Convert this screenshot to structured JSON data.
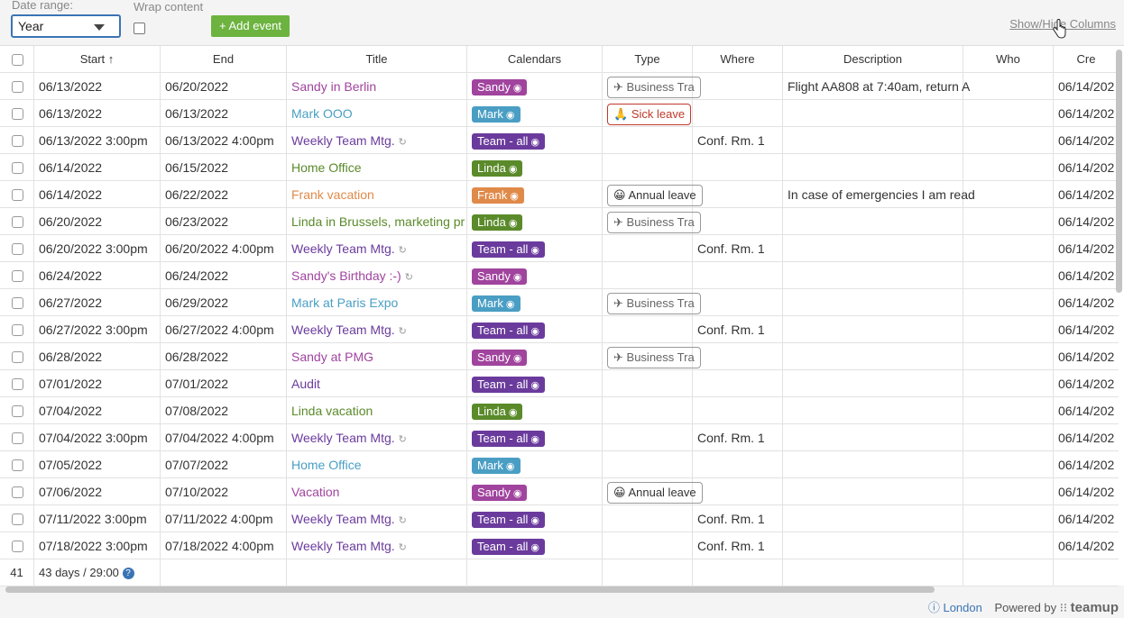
{
  "toolbar": {
    "date_range_label": "Date range:",
    "date_range_value": "Year",
    "wrap_label": "Wrap content",
    "add_event_label": "+ Add event",
    "show_hide_label": "Show/Hide Columns"
  },
  "columns": [
    "Start ↑",
    "End",
    "Title",
    "Calendars",
    "Type",
    "Where",
    "Description",
    "Who",
    "Cre"
  ],
  "colors": {
    "sandy": "#a0449e",
    "mark": "#4a9ec4",
    "team": "#6a3b9c",
    "linda": "#5a8a2a",
    "frank": "#e08a4a"
  },
  "rows": [
    {
      "start": "06/13/2022",
      "end": "06/20/2022",
      "title": "Sandy in Berlin",
      "cal": "Sandy",
      "color": "sandy",
      "rec": false,
      "type": "Business Tra",
      "type_kind": "travel",
      "where": "",
      "desc": "Flight AA808 at 7:40am, return A",
      "created": "06/14/202"
    },
    {
      "start": "06/13/2022",
      "end": "06/13/2022",
      "title": "Mark OOO",
      "cal": "Mark",
      "color": "mark",
      "rec": false,
      "type": "Sick leave",
      "type_kind": "sick",
      "where": "",
      "desc": "",
      "created": "06/14/202"
    },
    {
      "start": "06/13/2022 3:00pm",
      "end": "06/13/2022 4:00pm",
      "title": "Weekly Team Mtg.",
      "cal": "Team - all",
      "color": "team",
      "rec": true,
      "type": "",
      "type_kind": "",
      "where": "Conf. Rm. 1",
      "desc": "",
      "created": "06/14/202"
    },
    {
      "start": "06/14/2022",
      "end": "06/15/2022",
      "title": "Home Office",
      "cal": "Linda",
      "color": "linda",
      "rec": false,
      "type": "",
      "type_kind": "",
      "where": "",
      "desc": "",
      "created": "06/14/202"
    },
    {
      "start": "06/14/2022",
      "end": "06/22/2022",
      "title": "Frank vacation",
      "cal": "Frank",
      "color": "frank",
      "rec": false,
      "type": "Annual leave",
      "type_kind": "annual",
      "where": "",
      "desc": "In case of emergencies I am read",
      "created": "06/14/202"
    },
    {
      "start": "06/20/2022",
      "end": "06/23/2022",
      "title": "Linda in Brussels, marketing pr",
      "cal": "Linda",
      "color": "linda",
      "rec": false,
      "type": "Business Tra",
      "type_kind": "travel",
      "where": "",
      "desc": "",
      "created": "06/14/202"
    },
    {
      "start": "06/20/2022 3:00pm",
      "end": "06/20/2022 4:00pm",
      "title": "Weekly Team Mtg.",
      "cal": "Team - all",
      "color": "team",
      "rec": true,
      "type": "",
      "type_kind": "",
      "where": "Conf. Rm. 1",
      "desc": "",
      "created": "06/14/202"
    },
    {
      "start": "06/24/2022",
      "end": "06/24/2022",
      "title": "Sandy's Birthday :-)",
      "cal": "Sandy",
      "color": "sandy",
      "rec": true,
      "type": "",
      "type_kind": "",
      "where": "",
      "desc": "",
      "created": "06/14/202"
    },
    {
      "start": "06/27/2022",
      "end": "06/29/2022",
      "title": "Mark at Paris Expo",
      "cal": "Mark",
      "color": "mark",
      "rec": false,
      "type": "Business Tra",
      "type_kind": "travel",
      "where": "",
      "desc": "",
      "created": "06/14/202"
    },
    {
      "start": "06/27/2022 3:00pm",
      "end": "06/27/2022 4:00pm",
      "title": "Weekly Team Mtg.",
      "cal": "Team - all",
      "color": "team",
      "rec": true,
      "type": "",
      "type_kind": "",
      "where": "Conf. Rm. 1",
      "desc": "",
      "created": "06/14/202"
    },
    {
      "start": "06/28/2022",
      "end": "06/28/2022",
      "title": "Sandy at PMG",
      "cal": "Sandy",
      "color": "sandy",
      "rec": false,
      "type": "Business Tra",
      "type_kind": "travel",
      "where": "",
      "desc": "",
      "created": "06/14/202"
    },
    {
      "start": "07/01/2022",
      "end": "07/01/2022",
      "title": "Audit",
      "cal": "Team - all",
      "color": "team",
      "rec": false,
      "type": "",
      "type_kind": "",
      "where": "",
      "desc": "",
      "created": "06/14/202"
    },
    {
      "start": "07/04/2022",
      "end": "07/08/2022",
      "title": "Linda vacation",
      "cal": "Linda",
      "color": "linda",
      "rec": false,
      "type": "",
      "type_kind": "",
      "where": "",
      "desc": "",
      "created": "06/14/202"
    },
    {
      "start": "07/04/2022 3:00pm",
      "end": "07/04/2022 4:00pm",
      "title": "Weekly Team Mtg.",
      "cal": "Team - all",
      "color": "team",
      "rec": true,
      "type": "",
      "type_kind": "",
      "where": "Conf. Rm. 1",
      "desc": "",
      "created": "06/14/202"
    },
    {
      "start": "07/05/2022",
      "end": "07/07/2022",
      "title": "Home Office",
      "cal": "Mark",
      "color": "mark",
      "rec": false,
      "type": "",
      "type_kind": "",
      "where": "",
      "desc": "",
      "created": "06/14/202"
    },
    {
      "start": "07/06/2022",
      "end": "07/10/2022",
      "title": "Vacation",
      "cal": "Sandy",
      "color": "sandy",
      "rec": false,
      "type": "Annual leave",
      "type_kind": "annual",
      "where": "",
      "desc": "",
      "created": "06/14/202"
    },
    {
      "start": "07/11/2022 3:00pm",
      "end": "07/11/2022 4:00pm",
      "title": "Weekly Team Mtg.",
      "cal": "Team - all",
      "color": "team",
      "rec": true,
      "type": "",
      "type_kind": "",
      "where": "Conf. Rm. 1",
      "desc": "",
      "created": "06/14/202"
    },
    {
      "start": "07/18/2022 3:00pm",
      "end": "07/18/2022 4:00pm",
      "title": "Weekly Team Mtg.",
      "cal": "Team - all",
      "color": "team",
      "rec": true,
      "type": "",
      "type_kind": "",
      "where": "Conf. Rm. 1",
      "desc": "",
      "created": "06/14/202"
    }
  ],
  "footer": {
    "count": "41",
    "summary": "43 days / 29:00"
  },
  "bottom_bar": {
    "location": "London",
    "powered_by": "Powered by",
    "brand": "teamup"
  }
}
